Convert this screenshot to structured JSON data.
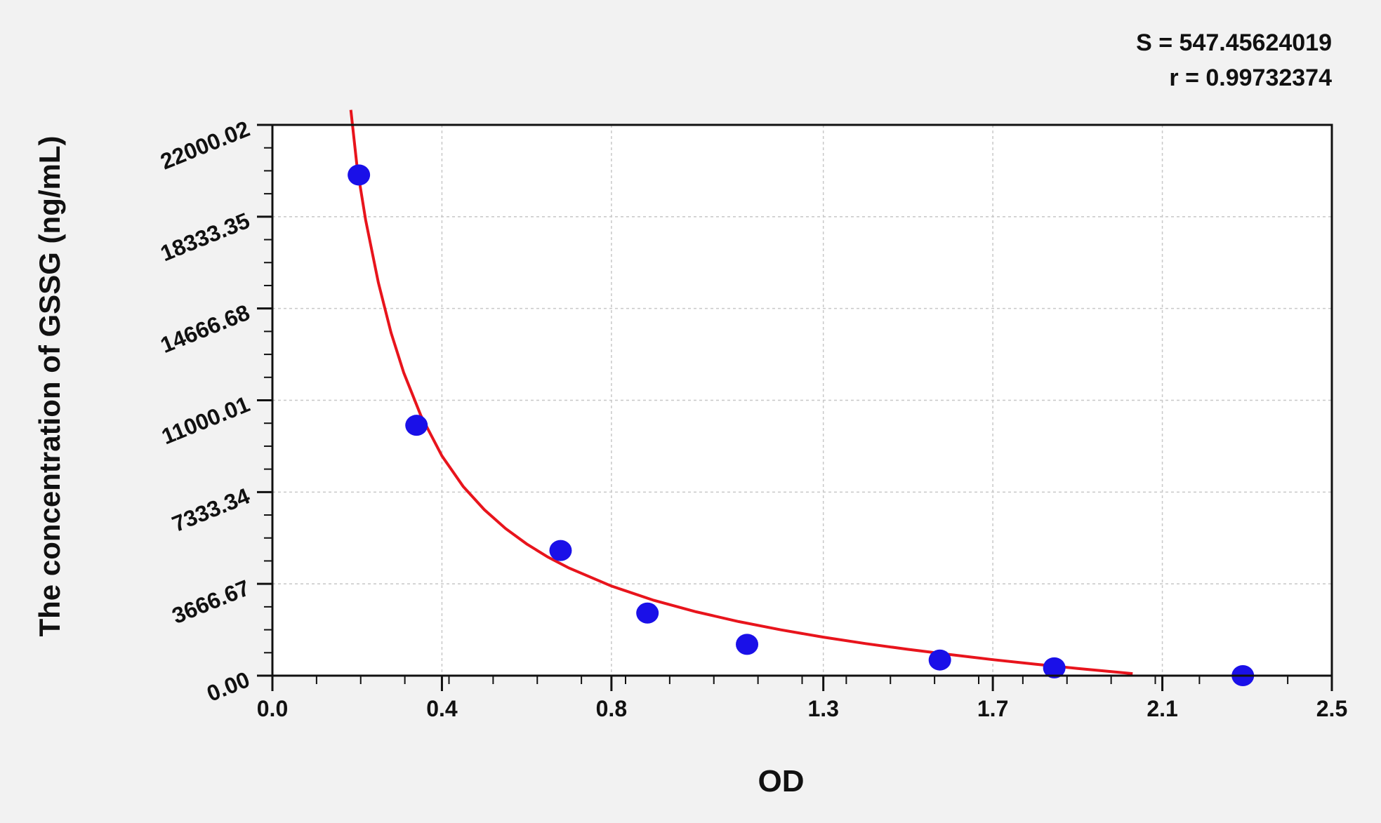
{
  "stats": {
    "s": "S = 547.45624019",
    "r": "r = 0.99732374"
  },
  "colors": {
    "background": "#f2f2f2",
    "plot_background": "#ffffff",
    "curve": "#e8141c",
    "points": "#1a10e8",
    "grid": "#c8c8c8",
    "axis": "#111111"
  },
  "chart_data": {
    "type": "scatter",
    "title": "",
    "xlabel": "OD",
    "ylabel": "The concentration of  GSSG (ng/mL)",
    "xlim": [
      0.0,
      2.5
    ],
    "ylim": [
      0.0,
      22000.02
    ],
    "x_ticks": [
      0.0,
      0.4,
      0.8,
      1.3,
      1.7,
      2.1,
      2.5
    ],
    "x_tick_labels": [
      "0.0",
      "0.4",
      "0.8",
      "1.3",
      "1.7",
      "2.1",
      "2.5"
    ],
    "y_ticks": [
      0.0,
      3666.67,
      7333.34,
      11000.01,
      14666.68,
      18333.35,
      22000.02
    ],
    "y_tick_labels": [
      "0.00",
      "3666.67",
      "7333.34",
      "11000.01",
      "14666.68",
      "18333.35",
      "22000.02"
    ],
    "grid": true,
    "legend": "none",
    "series": [
      {
        "kind": "points",
        "x": [
          0.204,
          0.34,
          0.68,
          0.885,
          1.12,
          1.575,
          1.845,
          2.29
        ],
        "y": [
          20000,
          10000,
          5000,
          2500,
          1250,
          625,
          312,
          0
        ]
      },
      {
        "kind": "fitted-curve",
        "x": [
          0.185,
          0.2,
          0.22,
          0.25,
          0.28,
          0.31,
          0.35,
          0.4,
          0.45,
          0.5,
          0.55,
          0.6,
          0.65,
          0.7,
          0.8,
          0.9,
          1.0,
          1.1,
          1.2,
          1.3,
          1.4,
          1.5,
          1.6,
          1.7,
          1.8,
          1.9,
          2.0,
          2.03
        ],
        "y": [
          22600,
          20300,
          18200,
          15700,
          13700,
          12100,
          10400,
          8780,
          7560,
          6630,
          5880,
          5260,
          4740,
          4300,
          3580,
          3010,
          2550,
          2160,
          1830,
          1540,
          1280,
          1050,
          840,
          640,
          460,
          290,
          130,
          80
        ]
      }
    ]
  }
}
